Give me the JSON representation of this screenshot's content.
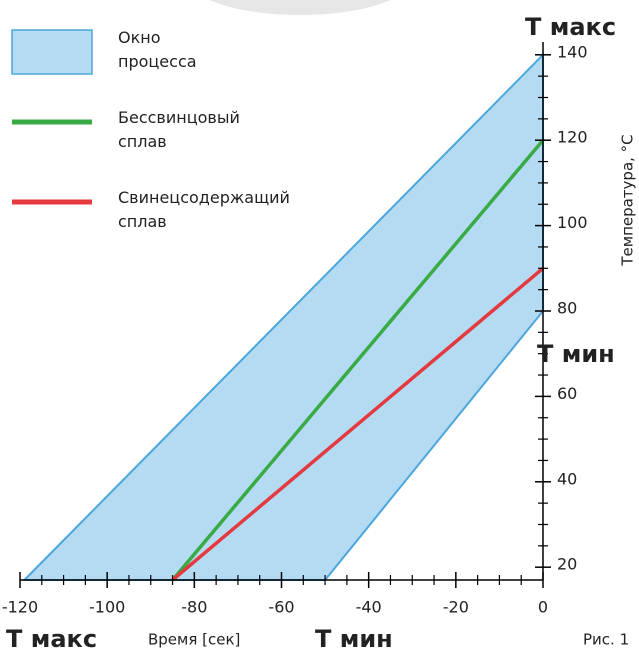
{
  "chart_data": {
    "type": "line",
    "x_label": "Время [сек]",
    "y_label": "Температура, °C",
    "xlim": [
      -120,
      0
    ],
    "ylim": [
      17,
      143
    ],
    "xticks": [
      -120,
      -100,
      -80,
      -60,
      -40,
      -20,
      0
    ],
    "yticks": [
      20,
      40,
      60,
      80,
      100,
      120,
      140
    ],
    "xminorticks": [
      -115,
      -110,
      -105,
      -95,
      -90,
      -85,
      -75,
      -70,
      -65,
      -55,
      -50,
      -45,
      -35,
      -30,
      -25,
      -15,
      -10,
      -5
    ],
    "yminorticks": [
      25,
      30,
      35,
      45,
      50,
      55,
      65,
      70,
      75,
      85,
      90,
      95,
      105,
      110,
      115,
      125,
      130,
      135
    ],
    "series": [
      {
        "name": "Окно процесса",
        "type": "area",
        "color": "#b5dbf3",
        "edge_color": "#4ba6dc",
        "x": [
          -119,
          0,
          0,
          -50
        ],
        "values": [
          17,
          140,
          80,
          17
        ]
      },
      {
        "name": "Бессвинцовый сплав",
        "color": "#3aaa45",
        "x": [
          -85,
          0
        ],
        "values": [
          17,
          120
        ]
      },
      {
        "name": "Свинецсодержащий сплав",
        "color": "#e3393f",
        "x": [
          -85,
          0
        ],
        "values": [
          17,
          90
        ]
      }
    ],
    "annotations": [
      "T макс",
      "T мин",
      "T макс",
      "T мин",
      "Рис. 1"
    ]
  }
}
